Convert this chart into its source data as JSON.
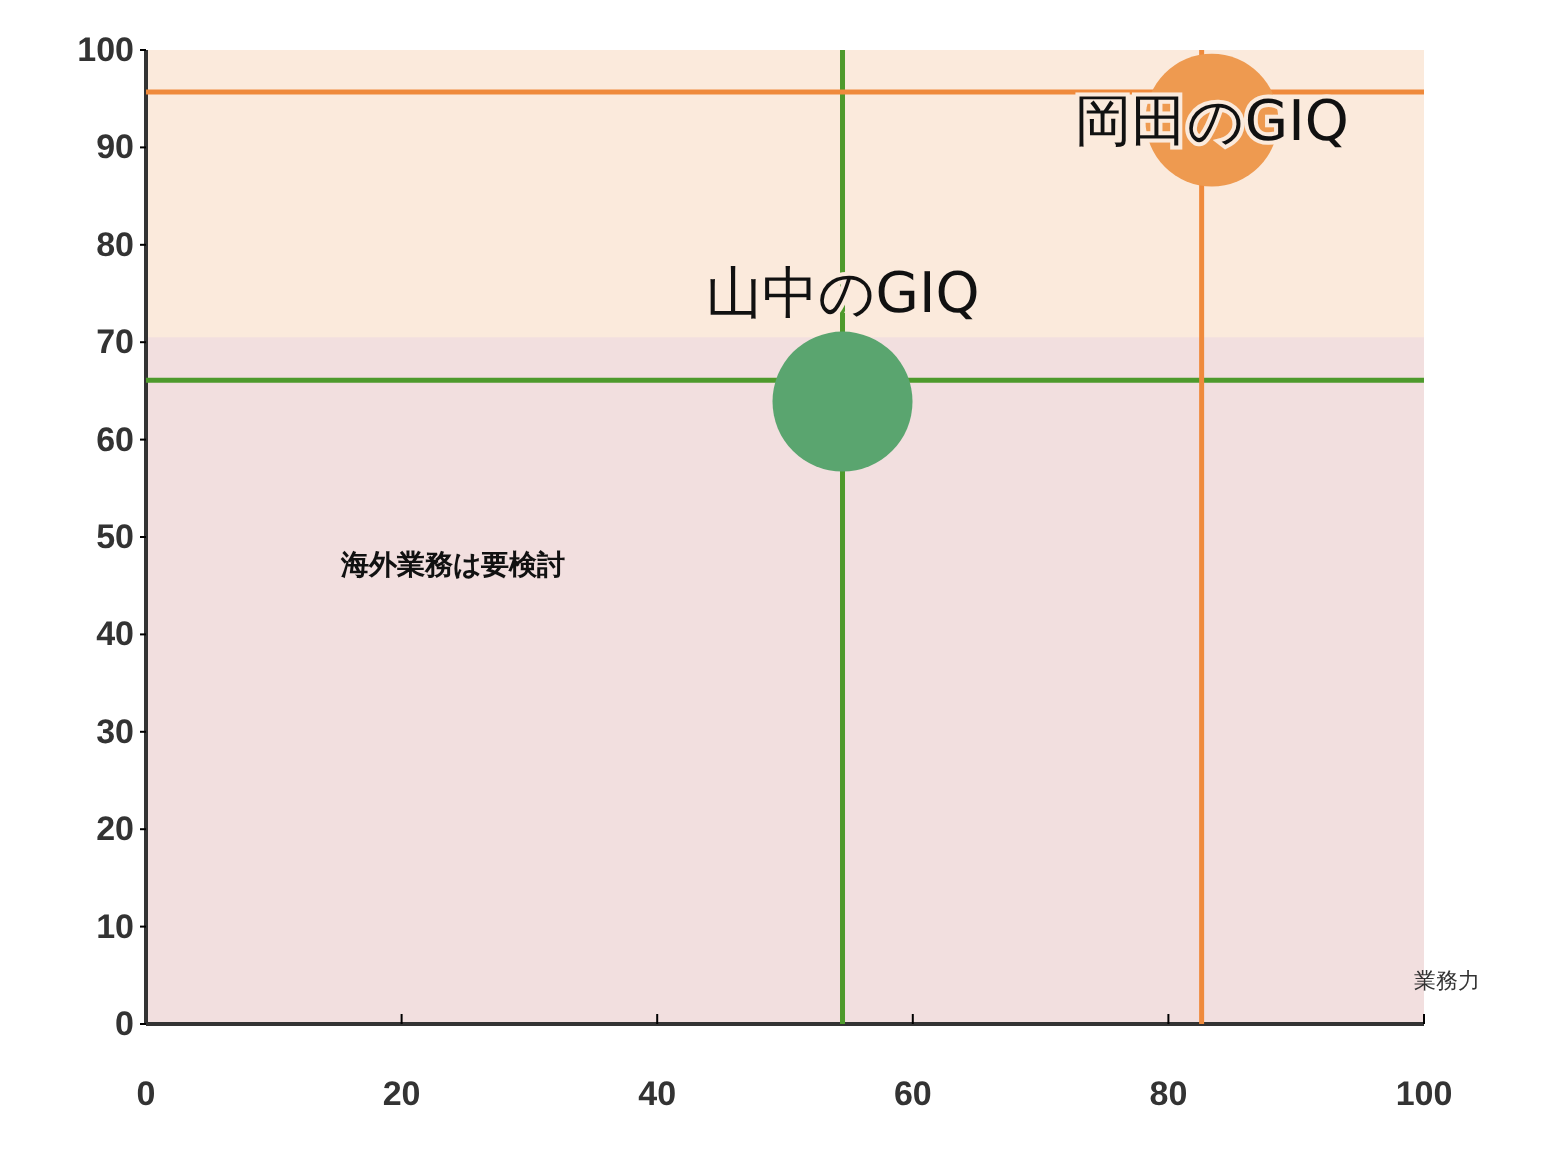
{
  "chart_data": {
    "type": "bubble",
    "xlabel": "業務力",
    "xlim": [
      0,
      100
    ],
    "xticks": [
      0,
      20,
      40,
      60,
      80,
      100
    ],
    "ylim": [
      0,
      100
    ],
    "yticks": [
      0,
      10,
      20,
      30,
      40,
      50,
      60,
      70,
      80,
      90,
      100
    ],
    "grid": false,
    "series": [
      {
        "name": "山中のGIQ",
        "color": "#5aa56f",
        "x": [
          54.5
        ],
        "values": [
          63.9
        ],
        "sizes": [
          1
        ]
      },
      {
        "name": "岡田のGIQ",
        "color": "#ee9a50",
        "x": [
          83.4
        ],
        "values": [
          92.8
        ],
        "sizes": [
          0.9
        ]
      }
    ],
    "ref_lines": [
      {
        "axis": "x",
        "value": 54.5,
        "color": "#4e9a2c"
      },
      {
        "axis": "y",
        "value": 66.1,
        "color": "#4e9a2c"
      },
      {
        "axis": "x",
        "value": 82.6,
        "color": "#ef8a3c"
      },
      {
        "axis": "y",
        "value": 95.7,
        "color": "#ef8a3c"
      }
    ],
    "bands": [
      {
        "axis": "y",
        "from": 70.5,
        "to": 100,
        "color": "#fbeadc"
      }
    ],
    "annotations": [
      "海外業務は要検討"
    ]
  }
}
